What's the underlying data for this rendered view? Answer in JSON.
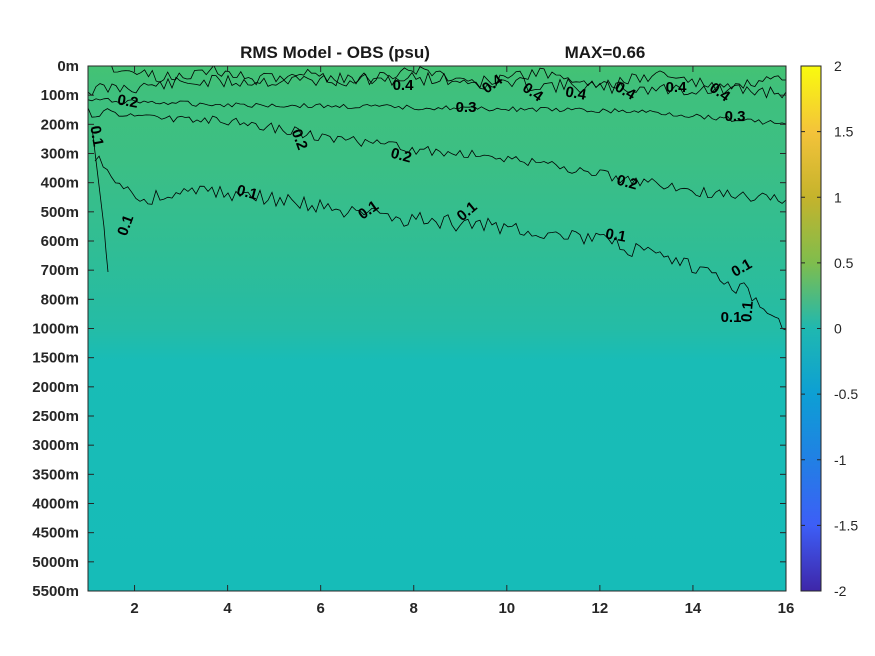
{
  "chart_data": {
    "type": "heatmap",
    "title": "RMS Model - OBS (psu)",
    "max_label": "MAX=0.66",
    "xlabel": "",
    "ylabel": "",
    "xlim": [
      1,
      16
    ],
    "x_ticks": [
      2,
      4,
      6,
      8,
      10,
      12,
      14,
      16
    ],
    "y_tick_labels": [
      "0m",
      "100m",
      "200m",
      "300m",
      "400m",
      "500m",
      "600m",
      "700m",
      "800m",
      "1000m",
      "1500m",
      "2000m",
      "2500m",
      "3000m",
      "3500m",
      "4000m",
      "4500m",
      "5000m",
      "5500m"
    ],
    "colorbar": {
      "colormap": "parula",
      "range": [
        -2,
        2
      ],
      "ticks": [
        2,
        1.5,
        1,
        0.5,
        0,
        -0.5,
        -1,
        -1.5,
        -2
      ],
      "tick_labels": [
        "2",
        "1.5",
        "1",
        "0.5",
        "0",
        "-0.5",
        "-1",
        "-1.5",
        "-2"
      ]
    },
    "contour_levels": [
      0.1,
      0.2,
      0.3,
      0.4
    ],
    "contour_labels": [
      {
        "text": "0.4",
        "x": 7.8,
        "depth": "0m-100m"
      },
      {
        "text": "0.4",
        "x": 10.8,
        "depth": "0m-100m"
      },
      {
        "text": "0.4",
        "x": 11.4,
        "depth": "0m-100m"
      },
      {
        "text": "0.4",
        "x": 12.3,
        "depth": "0m-100m"
      },
      {
        "text": "0.4",
        "x": 13.3,
        "depth": "0m-100m"
      },
      {
        "text": "0.4",
        "x": 14.2,
        "depth": "0m-100m"
      },
      {
        "text": "0.4",
        "x": 15.1,
        "depth": "0m-100m"
      },
      {
        "text": "0.2",
        "x": 1.8,
        "depth": "100m"
      },
      {
        "text": "0.3",
        "x": 9.2,
        "depth": "100m"
      },
      {
        "text": "0.3",
        "x": 15.2,
        "depth": "100m-200m"
      },
      {
        "text": "0.1",
        "x": 1.1,
        "depth": "200m"
      },
      {
        "text": "0.2",
        "x": 5.5,
        "depth": "200m-300m"
      },
      {
        "text": "0.2",
        "x": 7.4,
        "depth": "300m"
      },
      {
        "text": "0.2",
        "x": 13.1,
        "depth": "400m"
      },
      {
        "text": "0.1",
        "x": 4.3,
        "depth": "400m-500m"
      },
      {
        "text": "0.1",
        "x": 7.3,
        "depth": "500m"
      },
      {
        "text": "0.1",
        "x": 9.5,
        "depth": "500m"
      },
      {
        "text": "0.1",
        "x": 2.1,
        "depth": "500m-600m"
      },
      {
        "text": "0.1",
        "x": 12.1,
        "depth": "600m"
      },
      {
        "text": "0.1",
        "x": 14.4,
        "depth": "700m"
      },
      {
        "text": "0.1",
        "x": 14.9,
        "depth": "800m"
      },
      {
        "text": "0.1",
        "x": 14.8,
        "depth": "1000m"
      }
    ],
    "grid": false,
    "legend": "none"
  },
  "colors": {
    "field_surface": "#3fc07d",
    "field_upper": "#3ebf82",
    "field_mid": "#33bd91",
    "field_lower": "#22bca6",
    "field_deep": "#16bcb8",
    "contour": "#000000"
  }
}
